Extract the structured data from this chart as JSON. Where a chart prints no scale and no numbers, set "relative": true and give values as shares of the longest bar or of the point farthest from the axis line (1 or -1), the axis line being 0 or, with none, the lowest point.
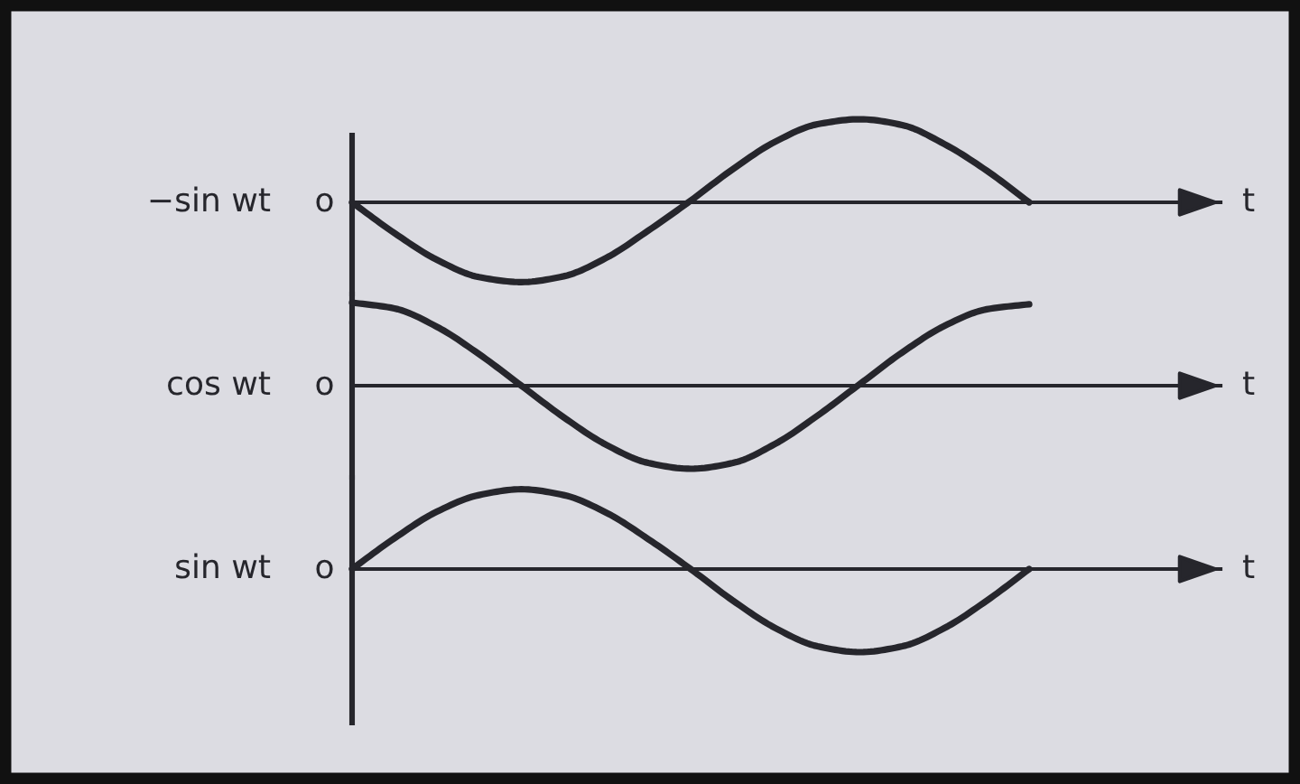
{
  "chart_data": [
    {
      "type": "line",
      "relative": true,
      "categories": [
        null,
        null,
        null,
        null,
        null,
        null,
        null,
        null,
        null,
        null,
        null,
        null,
        null,
        null,
        null,
        null,
        null
      ],
      "series": [
        {
          "color": "#26262c",
          "values": [
            0,
            -0.37,
            -0.69,
            -0.9,
            -0.96,
            -0.89,
            -0.67,
            -0.34,
            0.02,
            0.4,
            0.73,
            0.94,
            1,
            0.93,
            0.7,
            0.38,
            0
          ]
        }
      ],
      "ylabel": "−sin wt",
      "xlabel": "t",
      "annotations": [
        "o"
      ]
    },
    {
      "type": "line",
      "relative": true,
      "categories": [
        null,
        null,
        null,
        null,
        null,
        null,
        null,
        null,
        null,
        null,
        null,
        null,
        null,
        null,
        null,
        null,
        null
      ],
      "series": [
        {
          "color": "#26262c",
          "values": [
            1,
            0.93,
            0.71,
            0.38,
            0,
            -0.38,
            -0.71,
            -0.93,
            -1,
            -0.93,
            -0.7,
            -0.36,
            0.02,
            0.4,
            0.72,
            0.92,
            0.98
          ]
        }
      ],
      "ylabel": "cos wt",
      "xlabel": "t",
      "annotations": [
        "o"
      ]
    },
    {
      "type": "line",
      "relative": true,
      "categories": [
        null,
        null,
        null,
        null,
        null,
        null,
        null,
        null,
        null,
        null,
        null,
        null,
        null,
        null,
        null,
        null,
        null
      ],
      "series": [
        {
          "color": "#26262c",
          "values": [
            0,
            0.37,
            0.69,
            0.89,
            0.96,
            0.89,
            0.68,
            0.36,
            0,
            -0.38,
            -0.71,
            -0.93,
            -1,
            -0.93,
            -0.71,
            -0.38,
            0
          ]
        }
      ],
      "ylabel": "sin wt",
      "xlabel": "t",
      "annotations": [
        "o"
      ]
    }
  ]
}
